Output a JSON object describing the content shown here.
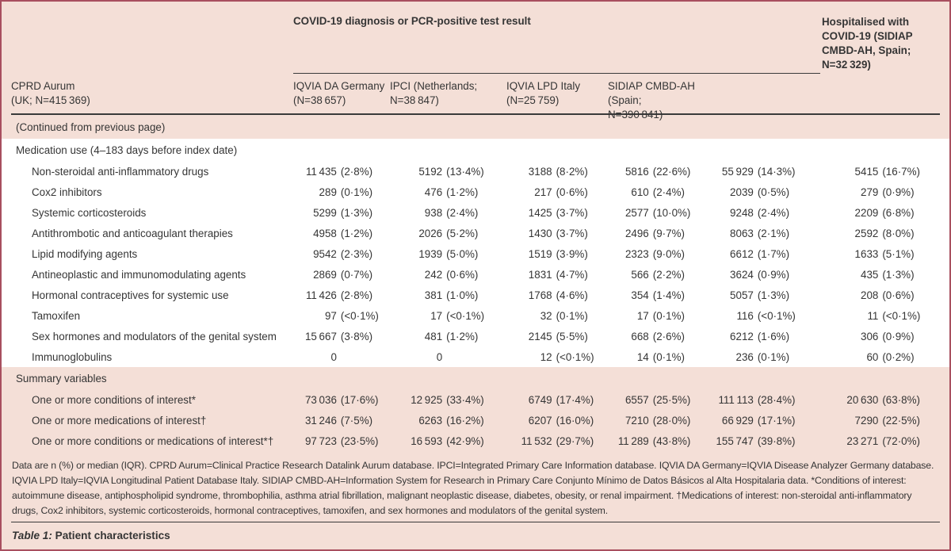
{
  "colors": {
    "table_background": "#f4dfd7",
    "card_border": "#a84f5f",
    "rule": "#3a3a3a",
    "text": "#353535",
    "row_white": "#ffffff"
  },
  "table": {
    "span_header": "COVID-19 diagnosis or PCR-positive test result",
    "last_col_header": "Hospitalised with COVID-19 (SIDIAP CMBD-AH, Spain; N=32 329)",
    "columns": [
      "CPRD Aurum\n(UK; N=415 369)",
      "IQVIA DA Germany\n(N=38 657)",
      "IPCI (Netherlands;\nN=38 847)",
      "IQVIA LPD Italy\n(N=25 759)",
      "SIDIAP CMBD-AH\n(Spain; N=390 841)"
    ],
    "continued_note": "(Continued from previous page)",
    "sections": [
      {
        "title": "Medication use (4–183 days before index date)",
        "tone": "white",
        "rows": [
          {
            "label": "Non-steroidal anti-inflammatory drugs",
            "values": [
              "11 435 (2·8%)",
              "5192 (13·4%)",
              "3188 (8·2%)",
              "5816 (22·6%)",
              "55 929 (14·3%)",
              "5415 (16·7%)"
            ]
          },
          {
            "label": "Cox2 inhibitors",
            "values": [
              "289 (0·1%)",
              "476 (1·2%)",
              "217 (0·6%)",
              "610 (2·4%)",
              "2039 (0·5%)",
              "279 (0·9%)"
            ]
          },
          {
            "label": "Systemic corticosteroids",
            "values": [
              "5299 (1·3%)",
              "938 (2·4%)",
              "1425 (3·7%)",
              "2577 (10·0%)",
              "9248 (2·4%)",
              "2209 (6·8%)"
            ]
          },
          {
            "label": "Antithrombotic and anticoagulant therapies",
            "values": [
              "4958 (1·2%)",
              "2026 (5·2%)",
              "1430 (3·7%)",
              "2496 (9·7%)",
              "8063 (2·1%)",
              "2592 (8·0%)"
            ]
          },
          {
            "label": "Lipid modifying agents",
            "values": [
              "9542 (2·3%)",
              "1939 (5·0%)",
              "1519 (3·9%)",
              "2323 (9·0%)",
              "6612 (1·7%)",
              "1633 (5·1%)"
            ]
          },
          {
            "label": "Antineoplastic and immunomodulating agents",
            "values": [
              "2869 (0·7%)",
              "242 (0·6%)",
              "1831 (4·7%)",
              "566 (2·2%)",
              "3624 (0·9%)",
              "435 (1·3%)"
            ]
          },
          {
            "label": "Hormonal contraceptives for systemic use",
            "values": [
              "11 426 (2·8%)",
              "381 (1·0%)",
              "1768 (4·6%)",
              "354 (1·4%)",
              "5057 (1·3%)",
              "208 (0·6%)"
            ]
          },
          {
            "label": "Tamoxifen",
            "values": [
              "97 (<0·1%)",
              "17 (<0·1%)",
              "32 (0·1%)",
              "17 (0·1%)",
              "116 (<0·1%)",
              "11 (<0·1%)"
            ]
          },
          {
            "label": "Sex hormones and modulators of the genital system",
            "values": [
              "15 667 (3·8%)",
              "481 (1·2%)",
              "2145 (5·5%)",
              "668 (2·6%)",
              "6212 (1·6%)",
              "306 (0·9%)"
            ]
          },
          {
            "label": "Immunoglobulins",
            "values": [
              "0",
              "0",
              "12 (<0·1%)",
              "14 (0·1%)",
              "236 (0·1%)",
              "60 (0·2%)"
            ]
          }
        ]
      },
      {
        "title": "Summary variables",
        "tone": "pink",
        "rows": [
          {
            "label": "One or more conditions of interest*",
            "values": [
              "73 036 (17·6%)",
              "12 925 (33·4%)",
              "6749 (17·4%)",
              "6557 (25·5%)",
              "111 113 (28·4%)",
              "20 630 (63·8%)"
            ]
          },
          {
            "label": "One or more medications of interest†",
            "values": [
              "31 246 (7·5%)",
              "6263 (16·2%)",
              "6207 (16·0%)",
              "7210 (28·0%)",
              "66 929 (17·1%)",
              "7290 (22·5%)"
            ]
          },
          {
            "label": "One or more conditions or medications of interest*†",
            "values": [
              "97 723 (23·5%)",
              "16 593 (42·9%)",
              "11 532 (29·7%)",
              "11 289 (43·8%)",
              "155 747 (39·8%)",
              "23 271 (72·0%)"
            ]
          }
        ]
      }
    ]
  },
  "footnote": {
    "text": "Data are n (%) or median (IQR). CPRD Aurum=Clinical Practice Research Datalink Aurum database. IPCI=Integrated Primary Care Information database. IQVIA DA Germany=IQVIA Disease Analyzer Germany database. IQVIA LPD Italy=IQVIA Longitudinal Patient Database Italy. SIDIAP CMBD-AH=Information System for Research in Primary Care Conjunto Mínimo de Datos Básicos al Alta Hospitalaria data. *Conditions of interest: autoimmune disease, antiphospholipid syndrome, thrombophilia, asthma atrial fibrillation, malignant neoplastic disease, diabetes, obesity, or renal impairment. †Medications of interest: non-steroidal anti-inflammatory drugs, Cox2 inhibitors, systemic corticosteroids, hormonal contraceptives, tamoxifen, and sex hormones and modulators of the genital system."
  },
  "caption": {
    "label": "Table 1:",
    "title": "Patient characteristics"
  }
}
